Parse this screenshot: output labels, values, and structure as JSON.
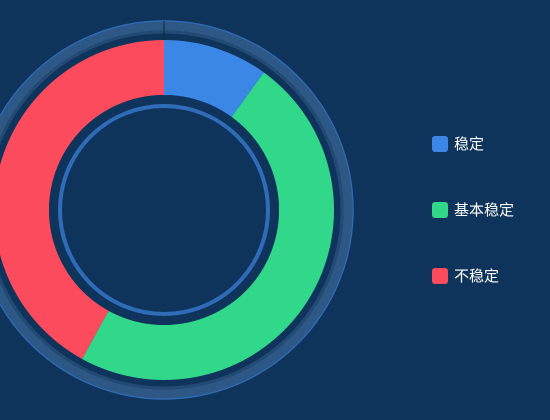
{
  "colors": {
    "background": "#0f345c",
    "outer_ring": "#2d5886",
    "outer_ring_dark": "#234a75",
    "inner_border": "#2f6bb7"
  },
  "chart_data": {
    "type": "pie",
    "subtype": "donut",
    "categories": [
      "稳定",
      "基本稳定",
      "不稳定"
    ],
    "values": [
      10,
      48,
      42
    ],
    "colors": [
      "#3a87e6",
      "#31d88a",
      "#fb4b5d"
    ],
    "legend_position": "right"
  },
  "legend": {
    "items": [
      {
        "label": "稳定",
        "color": "#3a87e6"
      },
      {
        "label": "基本稳定",
        "color": "#31d88a"
      },
      {
        "label": "不稳定",
        "color": "#fb4b5d"
      }
    ]
  }
}
